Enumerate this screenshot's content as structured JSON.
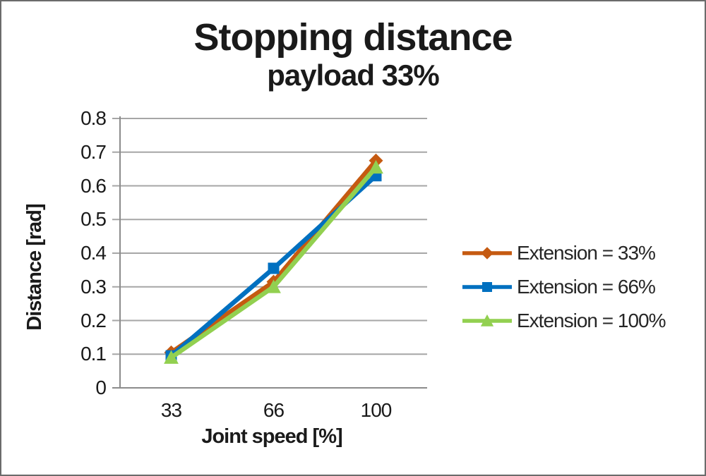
{
  "chart_data": {
    "type": "line",
    "title": "Stopping distance",
    "subtitle": "payload 33%",
    "xlabel": "Joint speed [%]",
    "ylabel": "Distance [rad]",
    "categories": [
      "33",
      "66",
      "100"
    ],
    "series": [
      {
        "name": "Extension = 33%",
        "color": "#C55A11",
        "marker": "diamond",
        "values": [
          0.105,
          0.315,
          0.675
        ]
      },
      {
        "name": "Extension = 66%",
        "color": "#0070C0",
        "marker": "square",
        "values": [
          0.095,
          0.355,
          0.63
        ]
      },
      {
        "name": "Extension = 100%",
        "color": "#92D050",
        "marker": "triangle",
        "values": [
          0.09,
          0.3,
          0.655
        ]
      }
    ],
    "ylim": [
      0,
      0.8
    ],
    "ytick_step": 0.1,
    "yticks": [
      "0",
      "0.1",
      "0.2",
      "0.3",
      "0.4",
      "0.5",
      "0.6",
      "0.7",
      "0.8"
    ],
    "grid": "horizontal",
    "legend_position": "right",
    "gridline_color": "#a6a6a6",
    "axis_color": "#8c8c8c"
  }
}
